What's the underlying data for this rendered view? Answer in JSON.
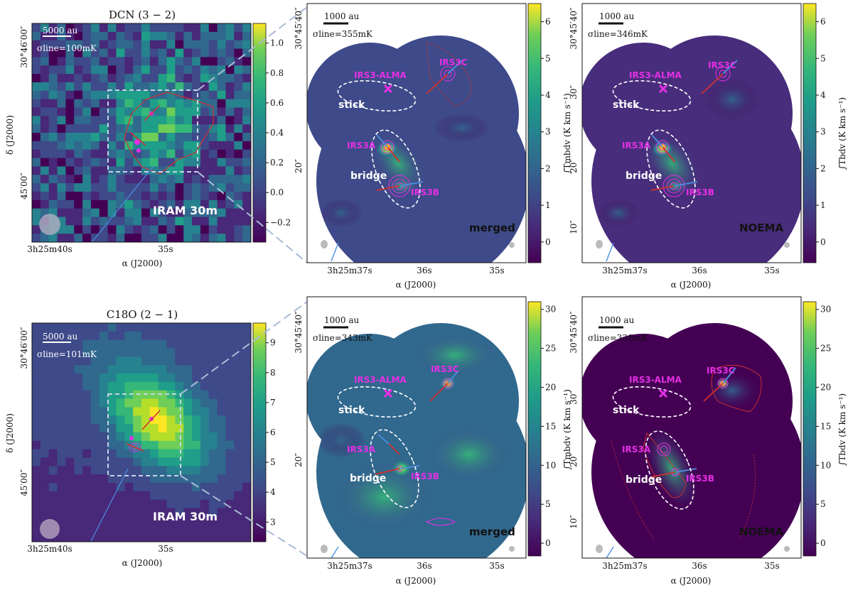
{
  "figure": {
    "palette": {
      "viridis_dark": "#440154",
      "viridis_mid": "#21918c",
      "viridis_light": "#fde725",
      "magenta": "#e52fe5",
      "red_contour": "#d0312d",
      "blue_arrow": "#4a90e2",
      "dashed_box": "#c8d4e6"
    },
    "axis_labels": {
      "ra": "α (J2000)",
      "dec": "δ (J2000)",
      "cbar_mb": "∫Tmbdv (K km s⁻¹)",
      "cbar_b": "∫Tbdv (K km s⁻¹)"
    },
    "labels": {
      "irs3_alma": "IRS3-ALMA",
      "irs3a": "IRS3A",
      "irs3b": "IRS3B",
      "irs3c": "IRS3C",
      "stick": "stick",
      "bridge": "bridge",
      "telescope": "IRAM 30m",
      "merged": "merged",
      "noema": "NOEMA"
    },
    "ticks": {
      "ra_wide": [
        "3h25m40s",
        "35s"
      ],
      "dec_wide": [
        "30°46′00″",
        "45′00″"
      ],
      "ra_zoom": [
        "3h25m37s",
        "36s",
        "35s"
      ],
      "dec_zoom": [
        "30°45′40″",
        "30″",
        "20″",
        "10″"
      ]
    },
    "scales": {
      "wide": "5000 au",
      "zoom": "1000 au"
    },
    "rows": [
      {
        "molecule": "DCN (3 − 2)",
        "panels": [
          {
            "sigma": "σline=100mK",
            "cbar_ticks": [
              "1.0",
              "0.8",
              "0.6",
              "0.4",
              "0.2",
              "0.0",
              "−0.2"
            ]
          },
          {
            "sigma": "σline=355mK",
            "cbar_ticks": [
              "6",
              "5",
              "4",
              "3",
              "2",
              "1",
              "0"
            ]
          },
          {
            "sigma": "σline=346mK",
            "cbar_ticks": [
              "6",
              "5",
              "4",
              "3",
              "2",
              "1",
              "0"
            ]
          }
        ]
      },
      {
        "molecule": "C18O (2 − 1)",
        "panels": [
          {
            "sigma": "σline=101mK",
            "cbar_ticks": [
              "9",
              "8",
              "7",
              "6",
              "5",
              "4",
              "3"
            ]
          },
          {
            "sigma": "σline=343mK",
            "cbar_ticks": [
              "30",
              "25",
              "20",
              "15",
              "10",
              "5",
              "0"
            ]
          },
          {
            "sigma": "σline=338mK",
            "cbar_ticks": [
              "30",
              "25",
              "20",
              "15",
              "10",
              "5",
              "0"
            ]
          }
        ]
      }
    ]
  }
}
